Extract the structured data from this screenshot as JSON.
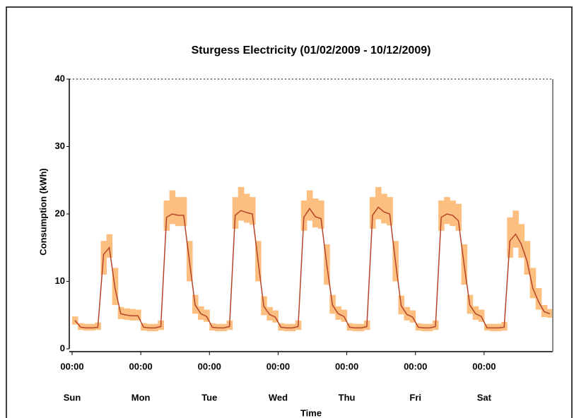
{
  "chart_data": {
    "type": "line",
    "title": "Sturgess Electricity (01/02/2009 - 10/12/2009)",
    "x_label": "Time",
    "y_label": "Consumption (kWh)",
    "xlim": [
      0,
      168
    ],
    "xticks": [
      {
        "value": 0,
        "label": "00:00"
      },
      {
        "value": 24,
        "label": "00:00"
      },
      {
        "value": 48,
        "label": "00:00"
      },
      {
        "value": 72,
        "label": "00:00"
      },
      {
        "value": 96,
        "label": "00:00"
      },
      {
        "value": 120,
        "label": "00:00"
      },
      {
        "value": 144,
        "label": "00:00"
      }
    ],
    "xtick_days": [
      "Sun",
      "Mon",
      "Tue",
      "Wed",
      "Thu",
      "Fri",
      "Sat"
    ],
    "ylim": [
      0,
      40
    ],
    "yticks": [
      0,
      10,
      20,
      30,
      40
    ],
    "x": [
      1,
      3,
      5,
      7,
      9,
      11,
      13,
      15,
      17,
      19,
      21,
      23,
      25,
      27,
      29,
      31,
      33,
      35,
      37,
      39,
      41,
      43,
      45,
      47,
      49,
      51,
      53,
      55,
      57,
      59,
      61,
      63,
      65,
      67,
      69,
      71,
      73,
      75,
      77,
      79,
      81,
      83,
      85,
      87,
      89,
      91,
      93,
      95,
      97,
      99,
      101,
      103,
      105,
      107,
      109,
      111,
      113,
      115,
      117,
      119,
      121,
      123,
      125,
      127,
      129,
      131,
      133,
      135,
      137,
      139,
      141,
      143,
      145,
      147,
      149,
      151,
      153,
      155,
      157,
      159,
      161,
      163,
      165,
      167
    ],
    "median": {
      "color": "#b5432a",
      "values": [
        4.2,
        3.2,
        3.1,
        3.1,
        3.2,
        14,
        15,
        9,
        5.2,
        5,
        4.9,
        4.9,
        3.2,
        3.1,
        3.1,
        3.3,
        19.5,
        20,
        19.8,
        19.8,
        13,
        6.5,
        5.2,
        4.8,
        3.2,
        3.1,
        3.1,
        3.3,
        19.8,
        20.5,
        20.2,
        20,
        13,
        6.3,
        5.1,
        4.7,
        3.2,
        3.1,
        3.1,
        3.3,
        19.5,
        20.8,
        19.6,
        19.3,
        12.5,
        6.5,
        5.2,
        4.8,
        3.2,
        3.1,
        3.1,
        3.3,
        19.8,
        21,
        20.3,
        20,
        13,
        6.4,
        5.1,
        4.7,
        3.2,
        3.1,
        3.1,
        3.3,
        19.5,
        20,
        19.8,
        19,
        12.5,
        6.5,
        5.2,
        4.8,
        3.1,
        3.1,
        3.1,
        3.2,
        16,
        17,
        15.5,
        13,
        9,
        7,
        5.5,
        5.2
      ]
    },
    "range": {
      "color": "#fdbf80",
      "low": [
        3.6,
        2.8,
        2.7,
        2.7,
        2.8,
        11,
        13.5,
        6.5,
        4.4,
        4.3,
        4.2,
        4.2,
        2.7,
        2.6,
        2.6,
        2.8,
        17.5,
        18.5,
        18.2,
        18.2,
        10,
        5.2,
        4.3,
        4,
        2.7,
        2.6,
        2.6,
        2.8,
        17.8,
        19,
        18.7,
        18.4,
        10,
        5,
        4.2,
        3.9,
        2.7,
        2.6,
        2.6,
        2.8,
        17.5,
        19,
        18,
        17.8,
        9.5,
        5.2,
        4.3,
        4,
        2.7,
        2.6,
        2.6,
        2.8,
        17.8,
        19.2,
        18.6,
        18.3,
        10,
        5.1,
        4.2,
        3.9,
        2.7,
        2.6,
        2.6,
        2.8,
        17.5,
        18.5,
        18.2,
        17.5,
        9.5,
        5.2,
        4.3,
        4,
        2.7,
        2.6,
        2.6,
        2.7,
        13.5,
        15,
        13.5,
        11,
        7.5,
        5.8,
        4.7,
        4.6
      ],
      "high": [
        4.8,
        3.8,
        3.7,
        3.7,
        3.9,
        16,
        17,
        12,
        6.2,
        6,
        5.9,
        5.8,
        3.8,
        3.7,
        3.7,
        4.2,
        22,
        23.5,
        22.5,
        22.5,
        16,
        8,
        6.3,
        5.8,
        3.8,
        3.7,
        3.7,
        4.2,
        22.5,
        24,
        23,
        22.5,
        16,
        7.8,
        6.2,
        5.7,
        3.8,
        3.7,
        3.7,
        4.2,
        22,
        23.5,
        22.3,
        22,
        15.5,
        8,
        6.3,
        5.8,
        3.8,
        3.7,
        3.7,
        4.2,
        22.5,
        24,
        23,
        22.5,
        16,
        7.9,
        6.2,
        5.7,
        3.8,
        3.7,
        3.7,
        4.2,
        22,
        22.5,
        22,
        21.5,
        15.5,
        8,
        6.3,
        5.8,
        3.7,
        3.7,
        3.7,
        4,
        19.5,
        20.5,
        18.5,
        16,
        12,
        9,
        6.5,
        5.9
      ]
    }
  }
}
